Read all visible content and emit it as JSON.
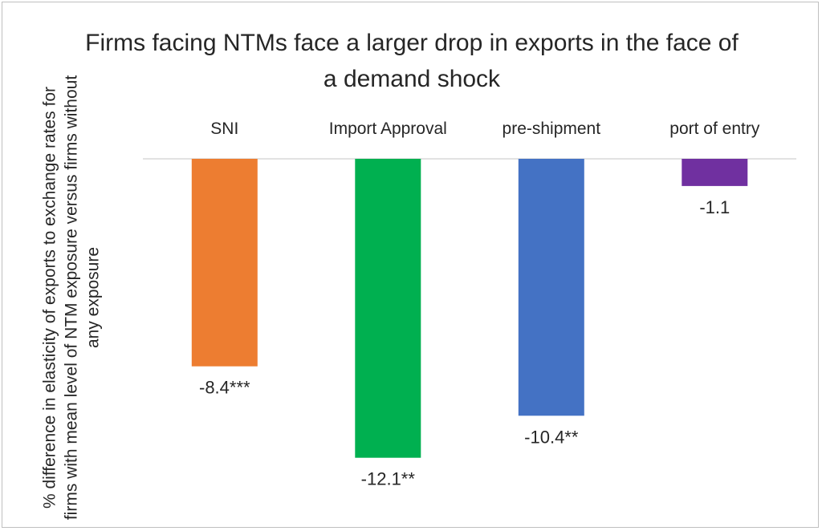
{
  "chart_data": {
    "type": "bar",
    "title": "Firms facing NTMs face a larger drop in exports in the face of a demand shock",
    "ylabel": "% difference in elasticity of exports to exchange rates for firms with mean level of NTM exposure versus firms without any exposure",
    "xlabel": "",
    "categories": [
      "SNI",
      "Import Approval",
      "pre-shipment",
      "port of entry"
    ],
    "values": [
      -8.4,
      -12.1,
      -10.4,
      -1.1
    ],
    "data_labels": [
      "-8.4***",
      "-12.1**",
      "-10.4**",
      "-1.1"
    ],
    "colors": [
      "#ED7D31",
      "#00B050",
      "#4472C4",
      "#7030A0"
    ],
    "ylim": [
      -13,
      0
    ],
    "grid": false,
    "legend": "none"
  }
}
